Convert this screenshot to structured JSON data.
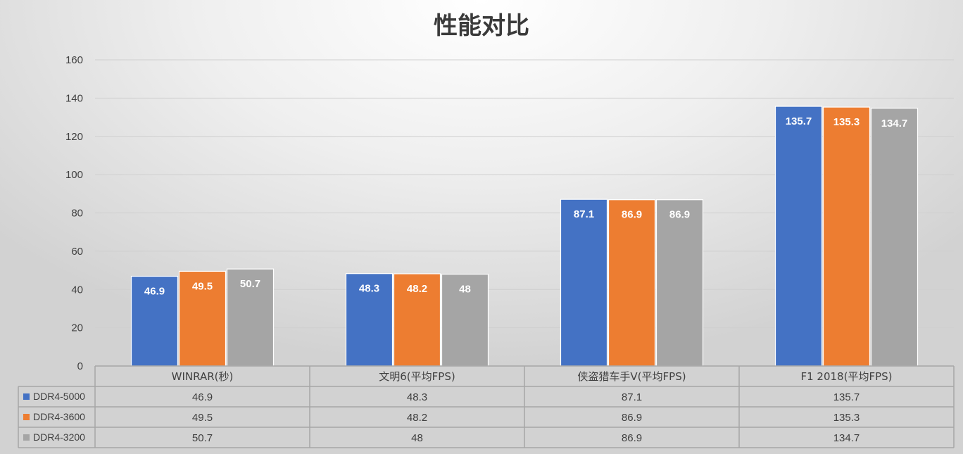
{
  "chart_data": {
    "type": "bar",
    "title": "性能对比",
    "categories": [
      "WINRAR(秒)",
      "文明6(平均FPS)",
      "侠盗猎车手V(平均FPS)",
      "F1 2018(平均FPS)"
    ],
    "series": [
      {
        "name": "DDR4-5000",
        "color": "#4472C4",
        "values": [
          46.9,
          48.3,
          87.1,
          135.7
        ],
        "labels": [
          "46.9",
          "48.3",
          "87.1",
          "135.7"
        ]
      },
      {
        "name": "DDR4-3600",
        "color": "#ED7D31",
        "values": [
          49.5,
          48.2,
          86.9,
          135.3
        ],
        "labels": [
          "49.5",
          "48.2",
          "86.9",
          "135.3"
        ]
      },
      {
        "name": "DDR4-3200",
        "color": "#A5A5A5",
        "values": [
          50.7,
          48,
          86.9,
          134.7
        ],
        "labels": [
          "50.7",
          "48",
          "86.9",
          "134.7"
        ]
      }
    ],
    "ylim": [
      0,
      160
    ],
    "yticks": [
      "0",
      "20",
      "40",
      "60",
      "80",
      "100",
      "120",
      "140",
      "160"
    ],
    "grid": true,
    "legend": "data-table"
  }
}
